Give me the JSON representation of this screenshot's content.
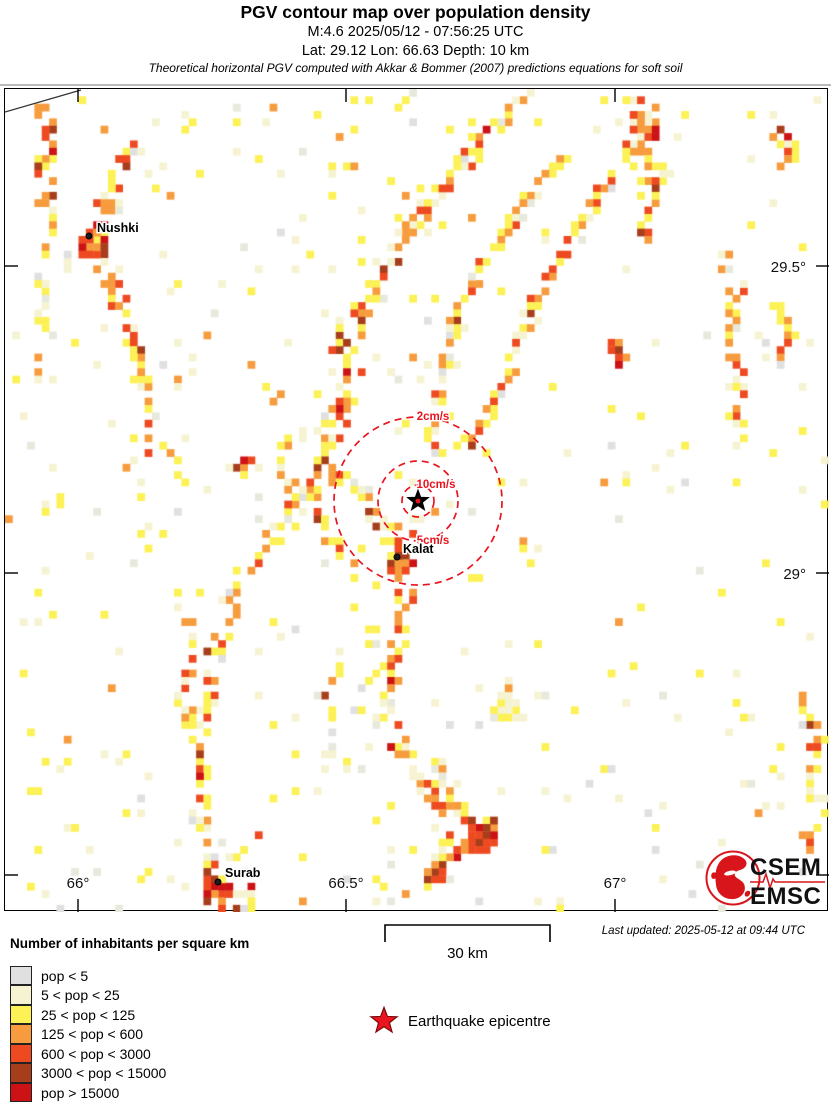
{
  "header": {
    "title": "PGV contour map over population density",
    "line2": "M:4.6 2025/05/12 - 07:56:25 UTC",
    "line3": "Lat: 29.12 Lon: 66.63 Depth: 10 km",
    "line4": "Theoretical horizontal PGV computed with Akkar & Bommer (2007) predictions equations for soft soil"
  },
  "map": {
    "contour_color": "#e8141e",
    "axis": {
      "lat_labels": [
        {
          "text": "29.5°"
        },
        {
          "text": "29°"
        }
      ],
      "lon_labels": [
        {
          "text": "66°"
        },
        {
          "text": "66.5°"
        },
        {
          "text": "67°"
        }
      ]
    },
    "cities": [
      {
        "name": "Nushki"
      },
      {
        "name": "Kalat"
      },
      {
        "name": "Surab"
      }
    ],
    "contours": [
      {
        "label": "2cm/s"
      },
      {
        "label": "5cm/s"
      },
      {
        "label": "10cm/s"
      }
    ]
  },
  "logo": {
    "line1": "CSEM",
    "line2": "EMSC",
    "color": "#d9151c"
  },
  "footer": {
    "scale_label": "30 km",
    "last_updated": "Last updated: 2025-05-12 at 09:44 UTC",
    "legend_title": "Number of inhabitants per square km",
    "legend": [
      {
        "label": "pop < 5",
        "color": "#e0e0e0"
      },
      {
        "label": "5 < pop < 25",
        "color": "#f6f3d2"
      },
      {
        "label": "25 < pop < 125",
        "color": "#fcf155"
      },
      {
        "label": "125 < pop < 600",
        "color": "#f69c3e"
      },
      {
        "label": "600 < pop < 3000",
        "color": "#ee4a21"
      },
      {
        "label": "3000 < pop < 15000",
        "color": "#a63e1c"
      },
      {
        "label": "pop > 15000",
        "color": "#cd1216"
      }
    ],
    "epicentre_label": "Earthquake epicentre"
  }
}
